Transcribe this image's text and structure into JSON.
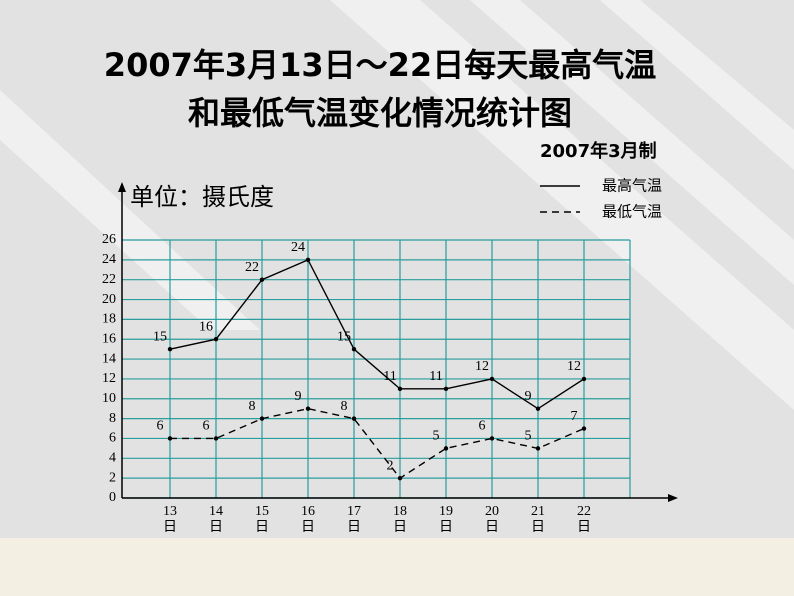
{
  "chart_data": {
    "type": "line",
    "title": "2007年3月13日～22日每天最高气温",
    "title_line2": "和最低气温变化情况统计图",
    "subtitle": "2007年3月制",
    "y_label": "单位：摄氏度",
    "categories": [
      "13日",
      "14日",
      "15日",
      "16日",
      "17日",
      "18日",
      "19日",
      "20日",
      "21日",
      "22日"
    ],
    "series": [
      {
        "name": "最高气温",
        "color": "#000000",
        "line_style": "solid",
        "values": [
          15,
          16,
          22,
          24,
          15,
          11,
          11,
          12,
          9,
          12
        ]
      },
      {
        "name": "最低气温",
        "color": "#000000",
        "line_style": "dashed",
        "values": [
          6,
          6,
          8,
          9,
          8,
          2,
          5,
          6,
          5,
          7
        ]
      }
    ],
    "ylim": [
      0,
      26
    ],
    "yticks": [
      0,
      2,
      4,
      6,
      8,
      10,
      12,
      14,
      16,
      18,
      20,
      22,
      24,
      26
    ],
    "grid": true,
    "grid_color": "#2a9d9d",
    "legend": "upper right"
  }
}
